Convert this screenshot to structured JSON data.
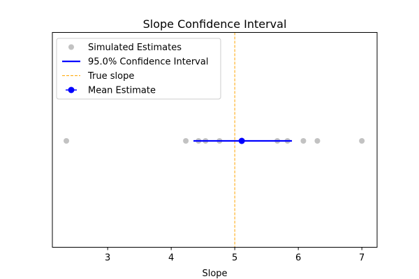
{
  "chart_data": {
    "type": "scatter",
    "title": "Slope Confidence Interval",
    "xlabel": "Slope",
    "ylabel": "",
    "xlim": [
      2.13,
      7.24
    ],
    "xticks": [
      3,
      4,
      5,
      6,
      7
    ],
    "grid": false,
    "legend_position": "upper-left",
    "simulated_estimates": [
      2.35,
      4.23,
      4.43,
      4.54,
      4.76,
      5.67,
      5.83,
      6.08,
      6.3,
      7.0
    ],
    "confidence_interval": {
      "lower": 4.35,
      "upper": 5.9
    },
    "mean_estimate": 5.11,
    "true_slope": 5.0,
    "series": [
      {
        "name": "Simulated Estimates",
        "style": "points",
        "color": "#999999"
      },
      {
        "name": "95.0% Confidence Interval",
        "style": "line",
        "color": "#0000ff"
      },
      {
        "name": "True slope",
        "style": "dashed-line",
        "color": "#ffa500"
      },
      {
        "name": "Mean Estimate",
        "style": "point-with-errorbar",
        "color": "#0000ff"
      }
    ]
  }
}
